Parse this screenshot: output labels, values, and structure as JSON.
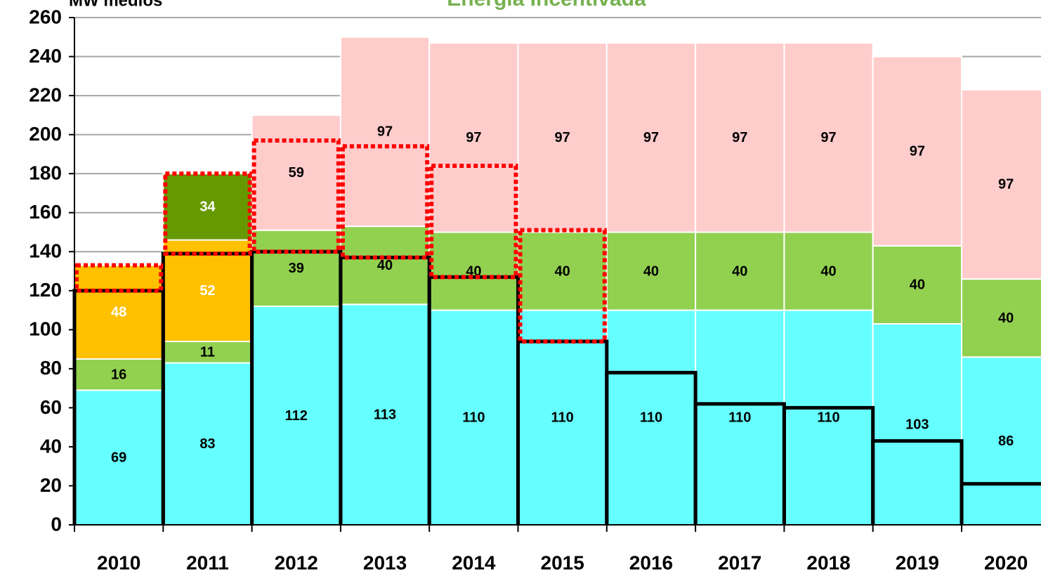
{
  "chart_data": {
    "type": "bar",
    "stacked": true,
    "title": "Energia Incentivada",
    "y_label": "MW médios",
    "categories": [
      "2010",
      "2011",
      "2012",
      "2013",
      "2014",
      "2015",
      "2016",
      "2017",
      "2018",
      "2019",
      "2020"
    ],
    "series": [
      {
        "color": "#66FFFF",
        "label_color": "#000000",
        "values": [
          69,
          83,
          112,
          113,
          110,
          110,
          110,
          110,
          110,
          103,
          86
        ]
      },
      {
        "color": "#92D050",
        "label_color": "#000000",
        "values": [
          16,
          11,
          39,
          40,
          40,
          40,
          40,
          40,
          40,
          40,
          40
        ]
      },
      {
        "color": "#FFC000",
        "label_color": "#FFFFFF",
        "values": [
          48,
          52,
          null,
          null,
          null,
          null,
          null,
          null,
          null,
          null,
          null
        ]
      },
      {
        "color": "#669900",
        "label_color": "#FFFFFF",
        "values": [
          null,
          34,
          null,
          null,
          null,
          null,
          null,
          null,
          null,
          null,
          null
        ]
      },
      {
        "color": "#FFCCCC",
        "label_color": "#000000",
        "values": [
          null,
          null,
          59,
          97,
          97,
          97,
          97,
          97,
          97,
          97,
          97
        ]
      }
    ],
    "step_line": {
      "color": "#000000",
      "values": [
        120,
        139,
        140,
        137,
        127,
        94,
        78,
        62,
        60,
        43,
        21
      ]
    },
    "dotted_boxes": {
      "color": "#FF0000",
      "values": [
        13,
        41,
        57,
        57,
        57,
        57,
        null,
        null,
        null,
        null,
        null
      ]
    },
    "ylim": [
      0,
      260
    ],
    "yticks": [
      0,
      20,
      40,
      60,
      80,
      100,
      120,
      140,
      160,
      180,
      200,
      220,
      240,
      260
    ],
    "grid": true
  }
}
